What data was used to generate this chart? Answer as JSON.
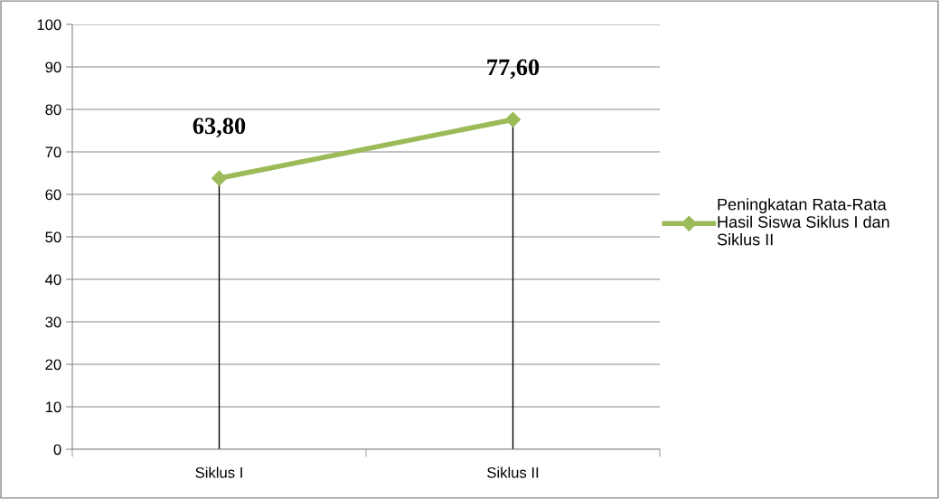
{
  "chart_data": {
    "type": "line",
    "categories": [
      "Siklus I",
      "Siklus II"
    ],
    "series": [
      {
        "name": "Peningkatan Rata-Rata Hasil Siswa Siklus I dan Siklus II",
        "color": "#9bbb59",
        "values": [
          63.8,
          77.6
        ],
        "value_labels": [
          "63,80",
          "77,60"
        ],
        "errors": [
          [
            0,
            63.8
          ],
          [
            0,
            77.6
          ]
        ]
      }
    ],
    "ylim": [
      0,
      100
    ],
    "yticks": [
      0,
      10,
      20,
      30,
      40,
      50,
      60,
      70,
      80,
      90,
      100
    ],
    "grid": "y",
    "legend": "right",
    "marker": "diamond",
    "line_style": "solid"
  }
}
